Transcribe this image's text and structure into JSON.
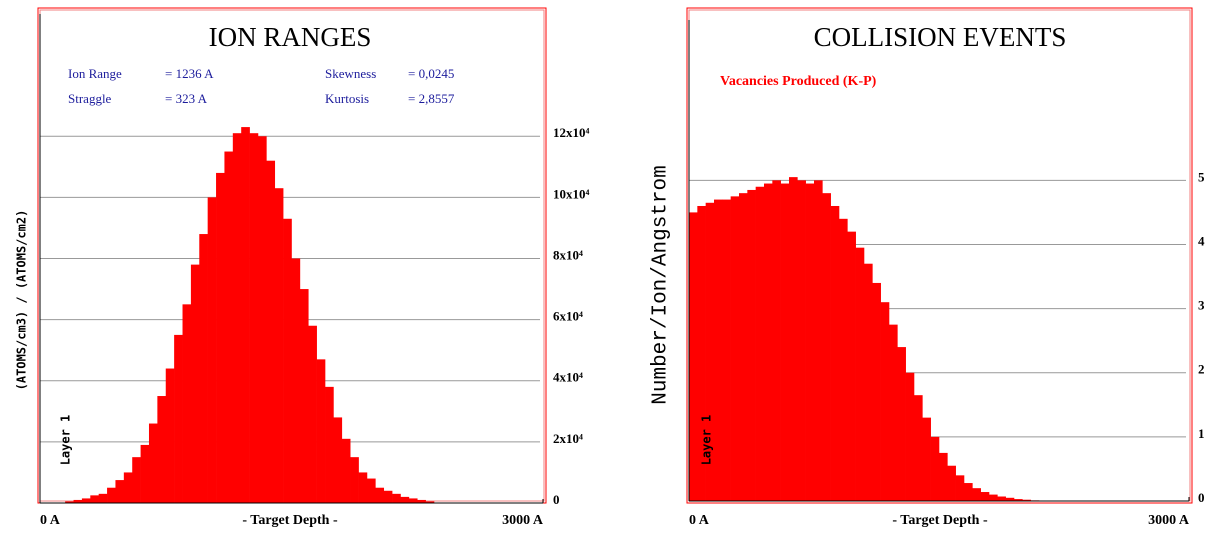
{
  "chart_data": [
    {
      "type": "histogram",
      "title": "ION RANGES",
      "stats": [
        {
          "label": "Ion Range",
          "value": "= 1236 A"
        },
        {
          "label": "Straggle",
          "value": "= 323 A"
        },
        {
          "label": "Skewness",
          "value": "= 0,0245"
        },
        {
          "label": "Kurtosis",
          "value": "= 2,8557"
        }
      ],
      "ylabel": "(ATOMS/cm3) / (ATOMS/cm2)",
      "xlabel": "- Target Depth -",
      "annotation": "Layer 1",
      "bins": [
        0,
        50,
        100,
        150,
        200,
        250,
        300,
        350,
        400,
        450,
        500,
        550,
        600,
        650,
        700,
        750,
        800,
        850,
        900,
        950,
        1000,
        1050,
        1100,
        1150,
        1200,
        1250,
        1300,
        1350,
        1400,
        1450,
        1500,
        1550,
        1600,
        1650,
        1700,
        1750,
        1800,
        1850,
        1900,
        1950,
        2000,
        2050,
        2100,
        2150,
        2200,
        2250,
        2300,
        2350,
        2400,
        2450,
        2500,
        2550,
        2600,
        2650,
        2700,
        2750,
        2800,
        2850,
        2900,
        2950,
        3000
      ],
      "values": [
        0,
        0,
        0,
        500,
        1000,
        1500,
        2500,
        3000,
        5000,
        7500,
        10000,
        15000,
        19000,
        26000,
        35000,
        44000,
        55000,
        65000,
        78000,
        88000,
        100000,
        108000,
        115000,
        121000,
        123000,
        121000,
        120000,
        112000,
        103000,
        93000,
        80000,
        70000,
        58000,
        47000,
        38000,
        28000,
        21000,
        15000,
        10000,
        8000,
        5000,
        4000,
        3000,
        2000,
        1500,
        1000,
        500,
        0,
        0,
        0,
        0,
        0,
        0,
        0,
        0,
        0,
        0,
        0,
        0,
        0
      ],
      "color": "#ff0000",
      "xlim": [
        0,
        3000
      ],
      "xticks": [
        {
          "value": 0,
          "label": "0 A"
        },
        {
          "value": 3000,
          "label": "3000 A"
        }
      ],
      "ylim": [
        0,
        160000
      ],
      "yticks": [
        0,
        {
          "value": 20000,
          "label": "2x10⁴"
        },
        {
          "value": 40000,
          "label": "4x10⁴"
        },
        {
          "value": 60000,
          "label": "6x10⁴"
        },
        {
          "value": 80000,
          "label": "8x10⁴"
        },
        {
          "value": 100000,
          "label": "10x10⁴"
        },
        {
          "value": 120000,
          "label": "12x10⁴"
        }
      ],
      "grid": true
    },
    {
      "type": "histogram",
      "title": "COLLISION EVENTS",
      "legend_label": "Vacancies Produced (K-P)",
      "ylabel": "Number/Ion/Angstrom",
      "xlabel": "- Target Depth -",
      "annotation": "Layer 1",
      "bins": [
        0,
        50,
        100,
        150,
        200,
        250,
        300,
        350,
        400,
        450,
        500,
        550,
        600,
        650,
        700,
        750,
        800,
        850,
        900,
        950,
        1000,
        1050,
        1100,
        1150,
        1200,
        1250,
        1300,
        1350,
        1400,
        1450,
        1500,
        1550,
        1600,
        1650,
        1700,
        1750,
        1800,
        1850,
        1900,
        1950,
        2000,
        2050,
        2100,
        2150,
        2200,
        2250,
        2300,
        2350,
        2400,
        2450,
        2500,
        2550,
        2600,
        2650,
        2700,
        2750,
        2800,
        2850,
        2900,
        2950,
        3000
      ],
      "values": [
        4.5,
        4.6,
        4.65,
        4.7,
        4.7,
        4.75,
        4.8,
        4.85,
        4.9,
        4.95,
        5.0,
        4.95,
        5.05,
        5.0,
        4.95,
        5.0,
        4.8,
        4.6,
        4.4,
        4.2,
        3.95,
        3.7,
        3.4,
        3.1,
        2.75,
        2.4,
        2.0,
        1.65,
        1.3,
        1.0,
        0.75,
        0.55,
        0.4,
        0.28,
        0.2,
        0.14,
        0.1,
        0.07,
        0.05,
        0.03,
        0.02,
        0.01,
        0,
        0,
        0,
        0,
        0,
        0,
        0,
        0,
        0,
        0,
        0,
        0,
        0,
        0,
        0,
        0,
        0,
        0
      ],
      "color": "#ff0000",
      "xlim": [
        0,
        3000
      ],
      "xticks": [
        {
          "value": 0,
          "label": "0 A"
        },
        {
          "value": 3000,
          "label": "3000 A"
        }
      ],
      "ylim": [
        0,
        7.5
      ],
      "yticks": [
        0,
        1,
        2,
        3,
        4,
        5
      ],
      "grid": true
    }
  ]
}
